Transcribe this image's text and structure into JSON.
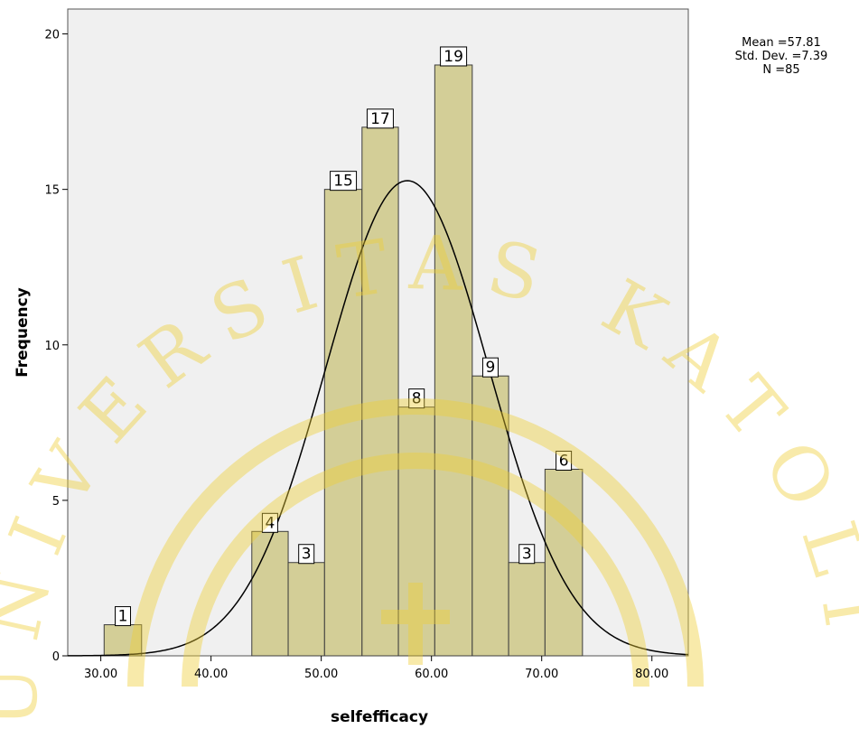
{
  "chart_data": {
    "type": "bar",
    "title": "",
    "xlabel": "selfefficacy",
    "ylabel": "Frequency",
    "xlim": [
      27.0,
      83.3
    ],
    "ylim": [
      0,
      20.8
    ],
    "x_ticks": [
      "30.00",
      "40.00",
      "50.00",
      "60.00",
      "70.00",
      "80.00"
    ],
    "x_tick_values": [
      30,
      40,
      50,
      60,
      70,
      80
    ],
    "y_ticks": [
      "0",
      "5",
      "10",
      "15",
      "20"
    ],
    "y_tick_values": [
      0,
      5,
      10,
      15,
      20
    ],
    "bins": [
      {
        "start": 30.3,
        "end": 33.7,
        "value": 1,
        "label": "1"
      },
      {
        "start": 43.7,
        "end": 47.0,
        "value": 4,
        "label": "4"
      },
      {
        "start": 47.0,
        "end": 50.3,
        "value": 3,
        "label": "3"
      },
      {
        "start": 50.3,
        "end": 53.7,
        "value": 15,
        "label": "15"
      },
      {
        "start": 53.7,
        "end": 57.0,
        "value": 17,
        "label": "17"
      },
      {
        "start": 57.0,
        "end": 60.3,
        "value": 8,
        "label": "8"
      },
      {
        "start": 60.3,
        "end": 63.7,
        "value": 19,
        "label": "19"
      },
      {
        "start": 63.7,
        "end": 67.0,
        "value": 9,
        "label": "9"
      },
      {
        "start": 67.0,
        "end": 70.3,
        "value": 3,
        "label": "3"
      },
      {
        "start": 70.3,
        "end": 73.7,
        "value": 6,
        "label": "6"
      }
    ],
    "normal_curve": {
      "mean": 57.81,
      "sd": 7.39,
      "n": 85,
      "bin_width": 3.33
    },
    "grid": false,
    "colors": {
      "plot_background": "#f0f0f0",
      "bar_fill": "#d3ce97",
      "bar_stroke": "#3c3c3c",
      "curve": "#000000",
      "watermark": "#efcf36"
    }
  },
  "stats": {
    "mean": "Mean =57.81",
    "std_dev": "Std. Dev. =7.39",
    "n": "N =85"
  },
  "watermark": {
    "text": "UNIVERSITAS KATOLIK"
  }
}
